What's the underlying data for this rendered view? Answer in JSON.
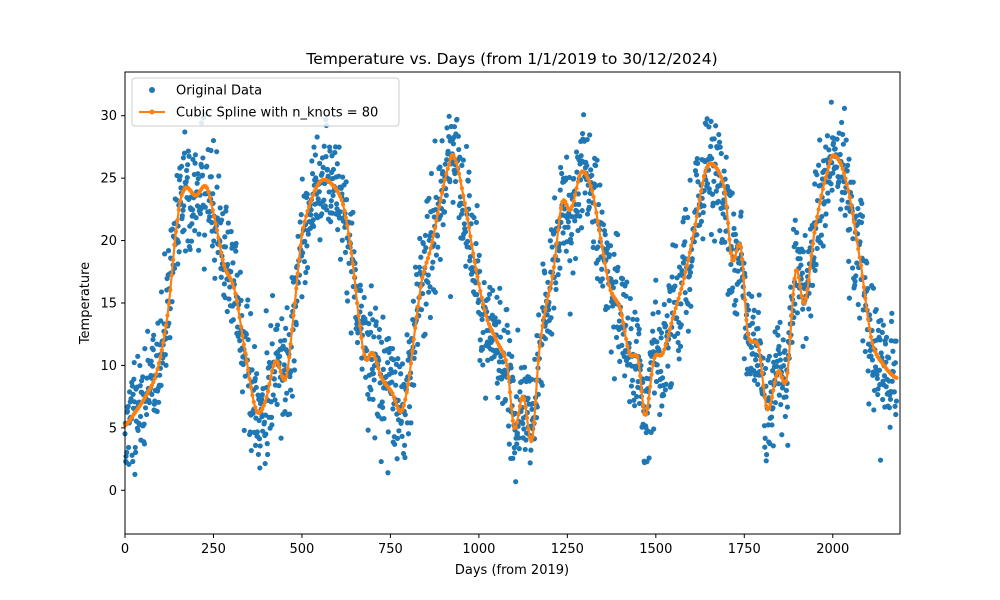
{
  "chart_data": {
    "type": "scatter",
    "title": "Temperature vs. Days (from 1/1/2019 to 30/12/2024)",
    "xlabel": "Days (from 2019)",
    "ylabel": "Temperature",
    "xlim": [
      0,
      2190
    ],
    "ylim": [
      -3.5,
      33.5
    ],
    "x_ticks": [
      0,
      250,
      500,
      750,
      1000,
      1250,
      1500,
      1750,
      2000
    ],
    "y_ticks": [
      0,
      5,
      10,
      15,
      20,
      25,
      30
    ],
    "grid": false,
    "legend_position": "top-left",
    "series": [
      {
        "name": "Original Data",
        "kind": "scatter",
        "color": "#1f77b4",
        "generator": "seasonal temperature around the spline, ~2190 daily points, spread ±3"
      },
      {
        "name": "Cubic Spline with n_knots = 80",
        "kind": "line",
        "color": "#ff7f0e",
        "knots": [
          [
            0,
            5.2
          ],
          [
            30,
            6.3
          ],
          [
            60,
            7.6
          ],
          [
            90,
            9.5
          ],
          [
            120,
            14.0
          ],
          [
            150,
            22.0
          ],
          [
            170,
            24.2
          ],
          [
            200,
            23.6
          ],
          [
            230,
            24.3
          ],
          [
            255,
            21.5
          ],
          [
            280,
            18.0
          ],
          [
            310,
            16.0
          ],
          [
            340,
            11.0
          ],
          [
            370,
            6.5
          ],
          [
            395,
            7.0
          ],
          [
            425,
            10.3
          ],
          [
            455,
            9.0
          ],
          [
            480,
            15.0
          ],
          [
            500,
            20.5
          ],
          [
            530,
            23.5
          ],
          [
            555,
            24.8
          ],
          [
            585,
            24.5
          ],
          [
            615,
            23.0
          ],
          [
            640,
            19.0
          ],
          [
            665,
            13.0
          ],
          [
            680,
            10.5
          ],
          [
            700,
            11.0
          ],
          [
            725,
            9.0
          ],
          [
            755,
            7.8
          ],
          [
            780,
            6.3
          ],
          [
            800,
            8.5
          ],
          [
            820,
            13.0
          ],
          [
            840,
            17.0
          ],
          [
            865,
            19.5
          ],
          [
            890,
            23.0
          ],
          [
            915,
            26.0
          ],
          [
            930,
            26.7
          ],
          [
            960,
            23.0
          ],
          [
            990,
            18.0
          ],
          [
            1020,
            14.0
          ],
          [
            1050,
            12.0
          ],
          [
            1080,
            10.0
          ],
          [
            1100,
            5.0
          ],
          [
            1125,
            7.5
          ],
          [
            1150,
            4.0
          ],
          [
            1170,
            11.0
          ],
          [
            1190,
            14.8
          ],
          [
            1210,
            17.5
          ],
          [
            1235,
            23.0
          ],
          [
            1260,
            22.5
          ],
          [
            1290,
            25.5
          ],
          [
            1320,
            24.0
          ],
          [
            1345,
            20.0
          ],
          [
            1370,
            16.2
          ],
          [
            1400,
            14.5
          ],
          [
            1425,
            11.0
          ],
          [
            1450,
            10.5
          ],
          [
            1470,
            6.0
          ],
          [
            1495,
            10.5
          ],
          [
            1520,
            11.0
          ],
          [
            1550,
            14.0
          ],
          [
            1580,
            17.0
          ],
          [
            1610,
            21.0
          ],
          [
            1640,
            25.5
          ],
          [
            1665,
            26.0
          ],
          [
            1695,
            24.0
          ],
          [
            1715,
            18.5
          ],
          [
            1740,
            19.5
          ],
          [
            1760,
            12.5
          ],
          [
            1790,
            11.5
          ],
          [
            1815,
            6.5
          ],
          [
            1845,
            9.5
          ],
          [
            1870,
            9.0
          ],
          [
            1895,
            17.5
          ],
          [
            1920,
            15.0
          ],
          [
            1950,
            21.0
          ],
          [
            1985,
            25.5
          ],
          [
            2005,
            26.8
          ],
          [
            2040,
            24.5
          ],
          [
            2080,
            18.0
          ],
          [
            2110,
            12.0
          ],
          [
            2145,
            10.0
          ],
          [
            2180,
            9.0
          ]
        ]
      }
    ]
  }
}
